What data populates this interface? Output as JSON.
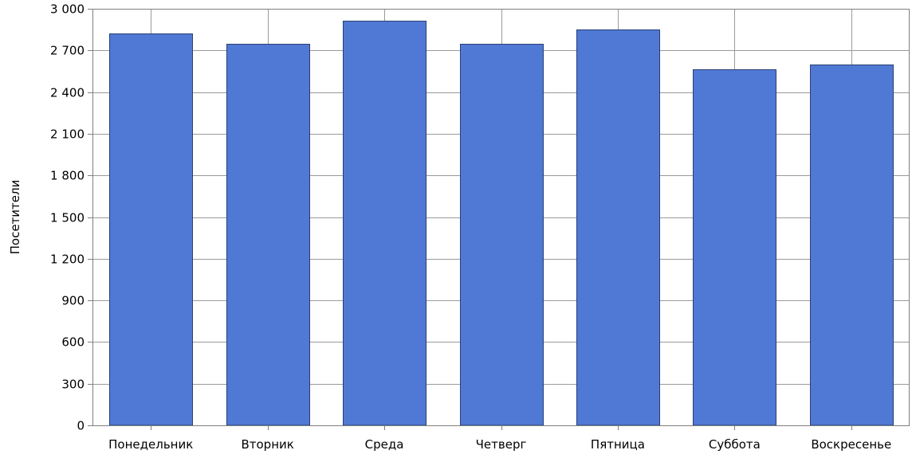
{
  "chart_data": {
    "type": "bar",
    "categories": [
      "Понедельник",
      "Вторник",
      "Среда",
      "Четверг",
      "Пятница",
      "Суббота",
      "Воскресенье"
    ],
    "values": [
      2820,
      2750,
      2915,
      2750,
      2850,
      2565,
      2600
    ],
    "ylabel": "Посетители",
    "ylim": [
      0,
      3000
    ],
    "yticks": [
      0,
      300,
      600,
      900,
      1200,
      1500,
      1800,
      2100,
      2400,
      2700,
      3000
    ],
    "ytick_labels": [
      "0",
      "300",
      "600",
      "900",
      "1 200",
      "1 500",
      "1 800",
      "2 100",
      "2 400",
      "2 700",
      "3 000"
    ],
    "grid": true,
    "colors": {
      "bar": "#4f79d4",
      "bar_edge": "#2b3f73",
      "grid": "#9a9a9a",
      "frame": "#7f7f7f"
    }
  }
}
